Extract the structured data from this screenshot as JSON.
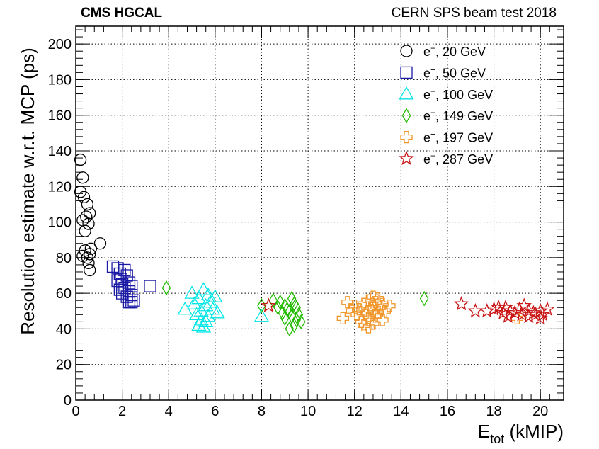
{
  "chart_data": {
    "type": "scatter",
    "experiment_label": "CMS HGCAL",
    "beam_label": "CERN SPS beam test 2018",
    "xlabel": "E",
    "xlabel_sub": "tot",
    "xlabel_unit": "(kMIP)",
    "ylabel": "Resolution estimate w.r.t. MCP (ps)",
    "xlim": [
      0,
      21
    ],
    "ylim": [
      0,
      210
    ],
    "x_ticks": [
      0,
      2,
      4,
      6,
      8,
      10,
      12,
      14,
      16,
      18,
      20
    ],
    "y_ticks": [
      0,
      20,
      40,
      60,
      80,
      100,
      120,
      140,
      160,
      180,
      200
    ],
    "grid": true,
    "legend_position": "top-right",
    "series": [
      {
        "name": "e+, 20 GeV",
        "particle": "e",
        "charge": "+",
        "energy": "20 GeV",
        "marker": "circle",
        "color": "#000000",
        "points": [
          [
            0.2,
            135
          ],
          [
            0.3,
            125
          ],
          [
            0.2,
            117
          ],
          [
            0.35,
            114
          ],
          [
            0.5,
            110
          ],
          [
            0.6,
            105
          ],
          [
            0.45,
            103
          ],
          [
            0.3,
            101
          ],
          [
            0.55,
            99
          ],
          [
            0.4,
            95
          ],
          [
            1.05,
            88
          ],
          [
            0.65,
            85
          ],
          [
            0.4,
            84
          ],
          [
            0.6,
            82
          ],
          [
            0.3,
            81
          ],
          [
            0.5,
            80
          ],
          [
            0.55,
            77
          ],
          [
            0.6,
            73
          ]
        ]
      },
      {
        "name": "e+, 50 GeV",
        "particle": "e",
        "charge": "+",
        "energy": "50 GeV",
        "marker": "square",
        "color": "#1a1aa6",
        "points": [
          [
            1.6,
            75
          ],
          [
            1.8,
            74
          ],
          [
            2.1,
            73
          ],
          [
            1.9,
            71
          ],
          [
            2.2,
            70
          ],
          [
            1.95,
            68
          ],
          [
            1.8,
            67
          ],
          [
            2.3,
            66
          ],
          [
            2.0,
            65
          ],
          [
            2.4,
            64
          ],
          [
            3.2,
            64
          ],
          [
            2.1,
            63
          ],
          [
            1.9,
            62
          ],
          [
            2.3,
            61
          ],
          [
            2.0,
            60
          ],
          [
            2.4,
            59
          ],
          [
            2.2,
            58
          ],
          [
            2.5,
            56
          ],
          [
            2.3,
            55
          ],
          [
            2.4,
            55
          ]
        ]
      },
      {
        "name": "e+, 100 GeV",
        "particle": "e",
        "charge": "+",
        "energy": "100 GeV",
        "marker": "triangle",
        "color": "#00e5e5",
        "points": [
          [
            5.0,
            60
          ],
          [
            5.5,
            62
          ],
          [
            5.7,
            59
          ],
          [
            6.0,
            58
          ],
          [
            5.3,
            57
          ],
          [
            5.8,
            55
          ],
          [
            5.1,
            54
          ],
          [
            5.6,
            53
          ],
          [
            4.7,
            51
          ],
          [
            5.9,
            51
          ],
          [
            5.4,
            50
          ],
          [
            6.1,
            49
          ],
          [
            5.2,
            48
          ],
          [
            5.7,
            47
          ],
          [
            8.0,
            47
          ],
          [
            5.4,
            45
          ],
          [
            5.6,
            44
          ],
          [
            5.3,
            42
          ],
          [
            5.5,
            41
          ]
        ]
      },
      {
        "name": "e+, 149 GeV",
        "particle": "e",
        "charge": "+",
        "energy": "149 GeV",
        "marker": "diamond",
        "color": "#22bb00",
        "points": [
          [
            3.9,
            63
          ],
          [
            15.0,
            57
          ],
          [
            8.5,
            56
          ],
          [
            8.8,
            55
          ],
          [
            9.3,
            57
          ],
          [
            9.0,
            53
          ],
          [
            9.4,
            54
          ],
          [
            8.7,
            52
          ],
          [
            9.1,
            51
          ],
          [
            9.5,
            52
          ],
          [
            8.0,
            53
          ],
          [
            9.2,
            50
          ],
          [
            8.9,
            49
          ],
          [
            9.6,
            48
          ],
          [
            9.3,
            47
          ],
          [
            9.0,
            46
          ],
          [
            9.5,
            45
          ],
          [
            9.7,
            44
          ],
          [
            9.4,
            42
          ],
          [
            9.2,
            40
          ]
        ]
      },
      {
        "name": "e+, 197 GeV",
        "particle": "e",
        "charge": "+",
        "energy": "197 GeV",
        "marker": "cross",
        "color": "#f0962a",
        "points": [
          [
            12.8,
            58
          ],
          [
            13.0,
            57
          ],
          [
            12.6,
            56
          ],
          [
            11.7,
            55
          ],
          [
            12.9,
            55
          ],
          [
            13.2,
            54
          ],
          [
            12.4,
            54
          ],
          [
            12.0,
            53
          ],
          [
            13.5,
            53
          ],
          [
            12.7,
            52
          ],
          [
            13.1,
            52
          ],
          [
            12.2,
            51
          ],
          [
            11.9,
            50
          ],
          [
            12.8,
            50
          ],
          [
            13.3,
            50
          ],
          [
            12.5,
            49
          ],
          [
            13.0,
            49
          ],
          [
            12.1,
            48
          ],
          [
            12.9,
            47
          ],
          [
            11.5,
            46
          ],
          [
            12.6,
            46
          ],
          [
            13.2,
            45
          ],
          [
            12.3,
            44
          ],
          [
            12.8,
            43
          ],
          [
            12.4,
            42
          ],
          [
            12.6,
            41
          ],
          [
            19.0,
            46
          ]
        ]
      },
      {
        "name": "e+, 287 GeV",
        "particle": "e",
        "charge": "+",
        "energy": "287 GeV",
        "marker": "star",
        "color": "#c81414",
        "points": [
          [
            16.6,
            54
          ],
          [
            8.3,
            53
          ],
          [
            18.2,
            52
          ],
          [
            18.5,
            52
          ],
          [
            19.3,
            53
          ],
          [
            17.2,
            50
          ],
          [
            17.7,
            50
          ],
          [
            18.0,
            51
          ],
          [
            18.7,
            50
          ],
          [
            19.1,
            51
          ],
          [
            19.5,
            50
          ],
          [
            18.4,
            49
          ],
          [
            18.9,
            49
          ],
          [
            19.7,
            49
          ],
          [
            20.0,
            50
          ],
          [
            20.3,
            51
          ],
          [
            19.2,
            48
          ],
          [
            19.8,
            48
          ],
          [
            20.1,
            48
          ],
          [
            18.6,
            47
          ],
          [
            19.5,
            47
          ],
          [
            20.0,
            46
          ]
        ]
      }
    ]
  }
}
